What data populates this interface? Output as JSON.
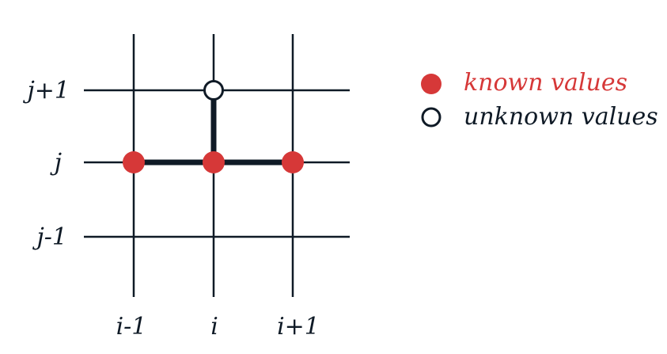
{
  "diagram": {
    "row_labels": [
      "j+1",
      "j",
      "j-1"
    ],
    "column_labels": [
      "i-1",
      "i",
      "i+1"
    ],
    "known_points": [
      {
        "col": "i-1",
        "row": "j"
      },
      {
        "col": "i",
        "row": "j"
      },
      {
        "col": "i+1",
        "row": "j"
      }
    ],
    "unknown_points": [
      {
        "col": "i",
        "row": "j+1"
      }
    ],
    "stencil_edges": [
      {
        "from": {
          "col": "i-1",
          "row": "j"
        },
        "to": {
          "col": "i+1",
          "row": "j"
        }
      },
      {
        "from": {
          "col": "i",
          "row": "j"
        },
        "to": {
          "col": "i",
          "row": "j+1"
        }
      }
    ],
    "colors": {
      "grid": "#0f1a26",
      "known": "#d63838",
      "unknown_fill": "#ffffff",
      "unknown_stroke": "#0f1a26"
    }
  },
  "legend": {
    "known_label": "known values",
    "unknown_label": "unknown values"
  }
}
